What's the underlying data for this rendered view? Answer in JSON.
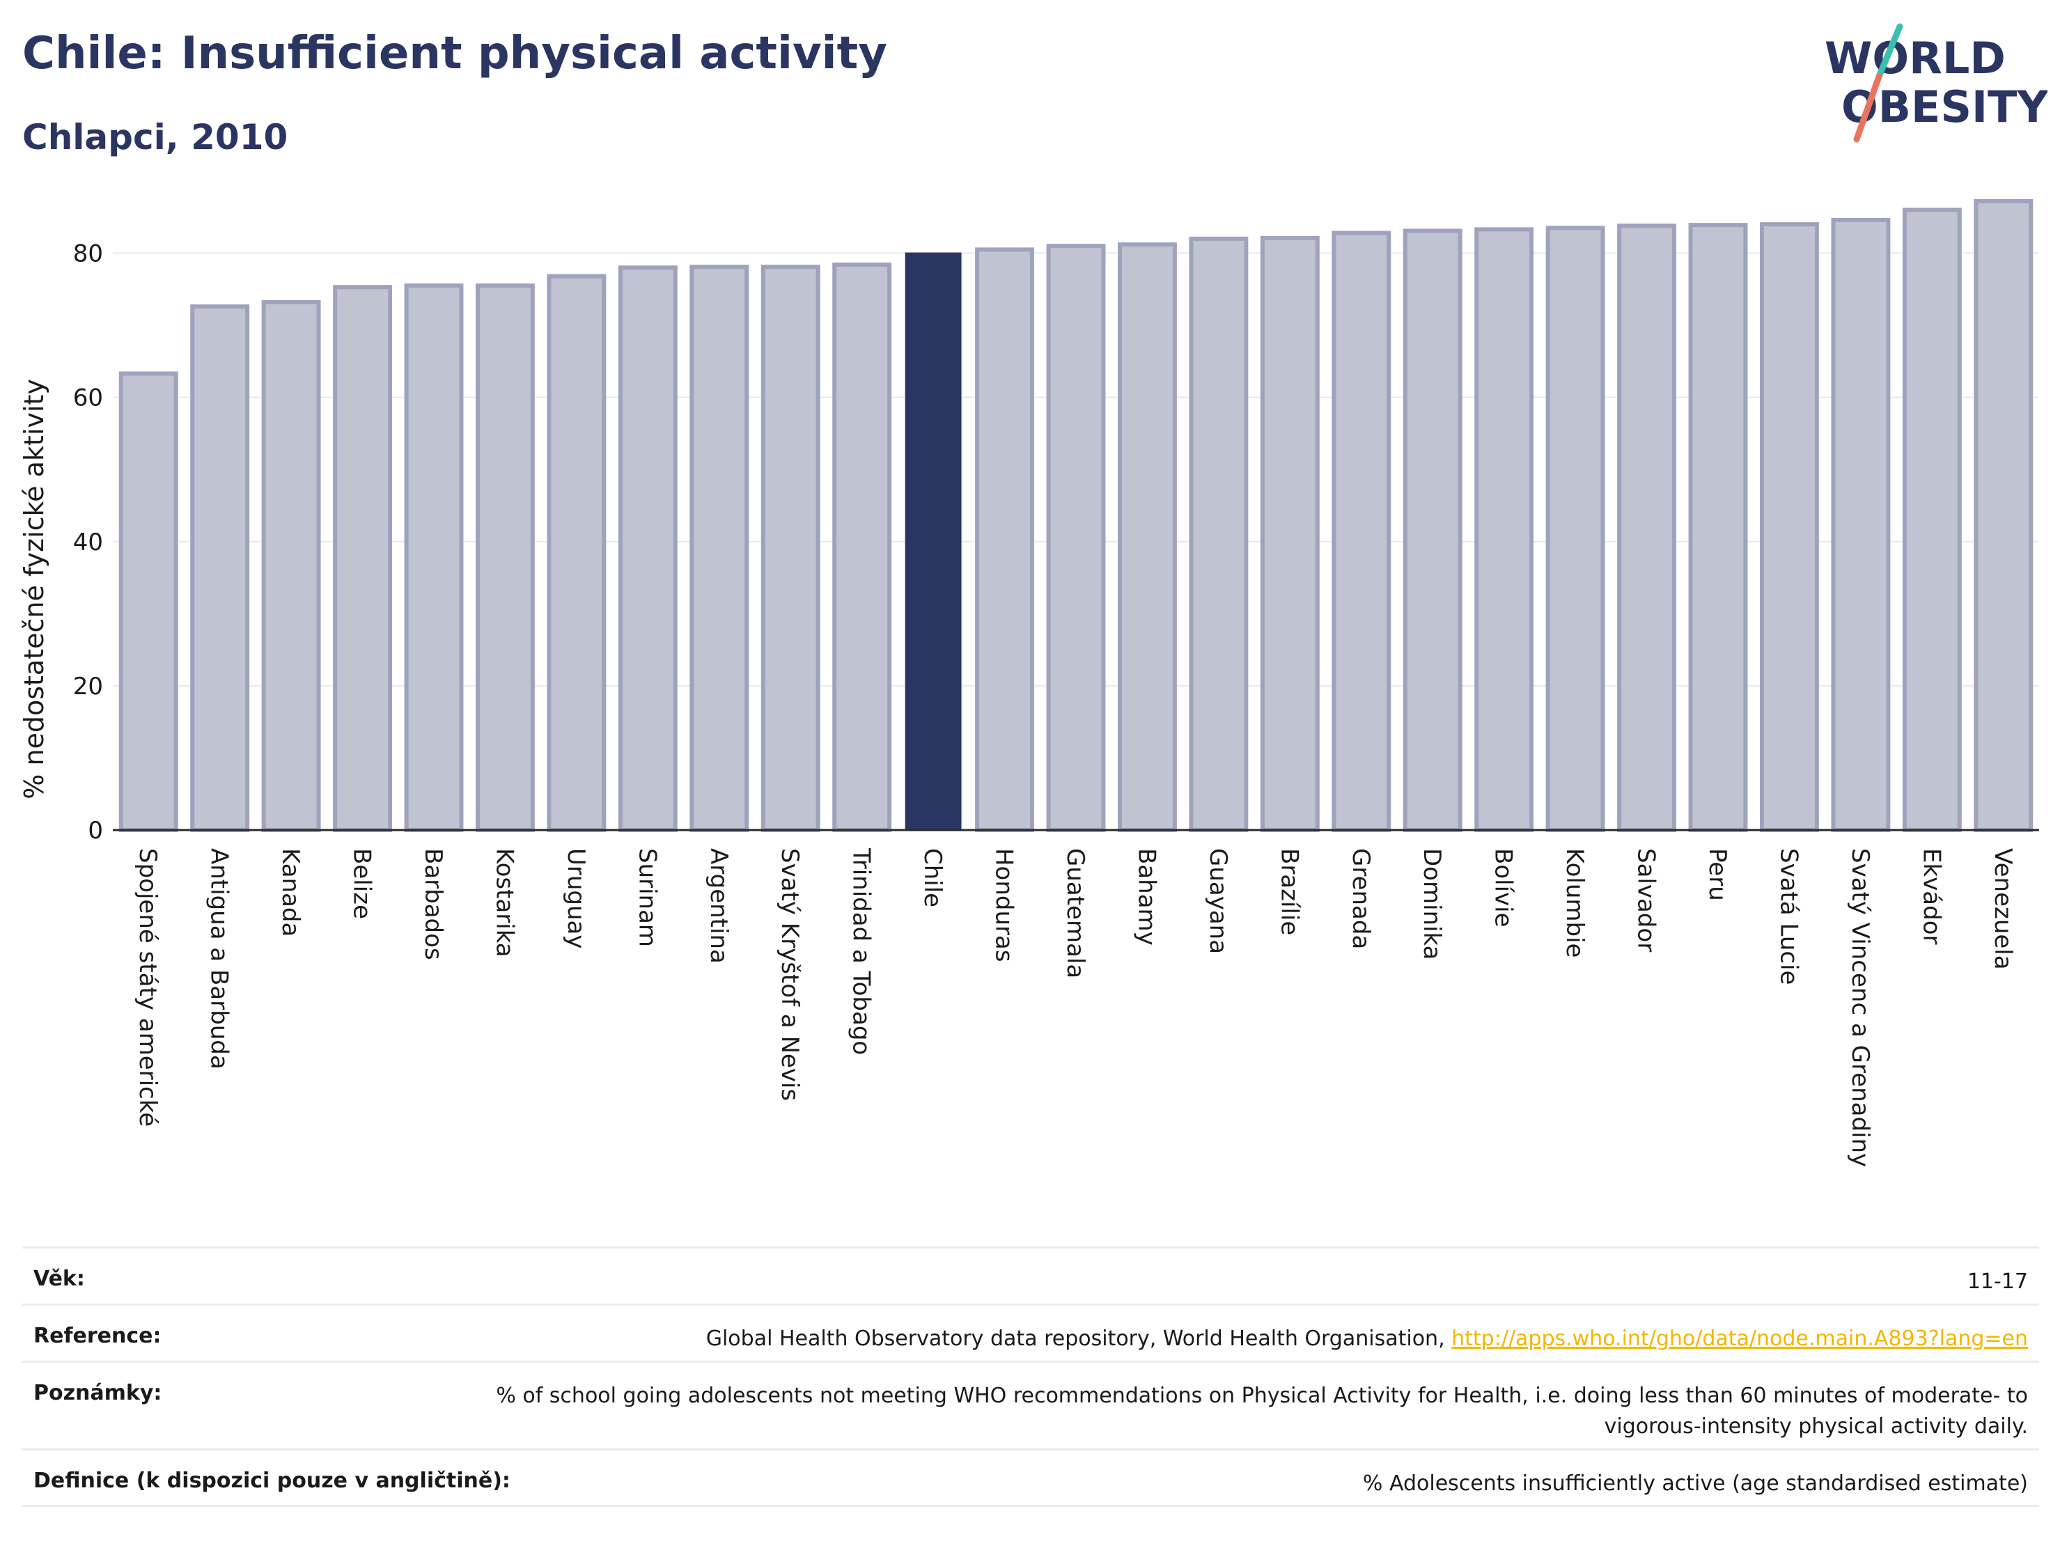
{
  "header": {
    "title": "Chile: Insufficient physical activity",
    "subtitle": "Chlapci, 2010"
  },
  "logo": {
    "line1": "WORLD",
    "line2": "OBESITY"
  },
  "colors": {
    "title": "#2b3562",
    "highlight_bar": "#2b3562",
    "bar_fill": "#c0c3d1",
    "bar_stroke": "#9ea3bd",
    "grid": "#e6e9f2",
    "axis": "#2b2b2b",
    "link": "#f2b700",
    "logo_teal": "#3cbfae",
    "logo_coral": "#e8735f"
  },
  "chart_data": {
    "type": "bar",
    "ylabel": "% nedostatečné fyzické aktivity",
    "ylim": [
      0,
      90
    ],
    "yticks": [
      0,
      20,
      40,
      60,
      80
    ],
    "grid": true,
    "highlight": "Chile",
    "categories": [
      "Spojené státy americké",
      "Antigua a Barbuda",
      "Kanada",
      "Belize",
      "Barbados",
      "Kostarika",
      "Uruguay",
      "Surinam",
      "Argentina",
      "Svatý Kryštof a Nevis",
      "Trinidad a Tobago",
      "Chile",
      "Honduras",
      "Guatemala",
      "Bahamy",
      "Guayana",
      "Brazílie",
      "Grenada",
      "Dominika",
      "Bolívie",
      "Kolumbie",
      "Salvador",
      "Peru",
      "Svatá Lucie",
      "Svatý Vincenc a Grenadiny",
      "Ekvádor",
      "Venezuela"
    ],
    "values": [
      63.3,
      72.6,
      73.2,
      75.3,
      75.5,
      75.5,
      76.8,
      78.0,
      78.1,
      78.1,
      78.4,
      80.0,
      80.5,
      81.0,
      81.2,
      82.0,
      82.1,
      82.8,
      83.1,
      83.3,
      83.5,
      83.8,
      83.9,
      84.0,
      84.6,
      86.0,
      87.2
    ]
  },
  "footer": {
    "rows": [
      {
        "label": "Věk:",
        "value": "11-17"
      },
      {
        "label": "Reference:",
        "value": "Global Health Observatory data repository, World Health Organisation, ",
        "link": "http://apps.who.int/gho/data/node.main.A893?lang=en"
      },
      {
        "label": "Poznámky:",
        "value": "% of school going adolescents not meeting WHO recommendations on Physical Activity for Health, i.e. doing less than 60 minutes of moderate- to vigorous-intensity physical activity daily."
      },
      {
        "label": "Definice (k dispozici pouze v angličtině):",
        "value": "% Adolescents insufficiently active (age standardised estimate)"
      }
    ]
  }
}
